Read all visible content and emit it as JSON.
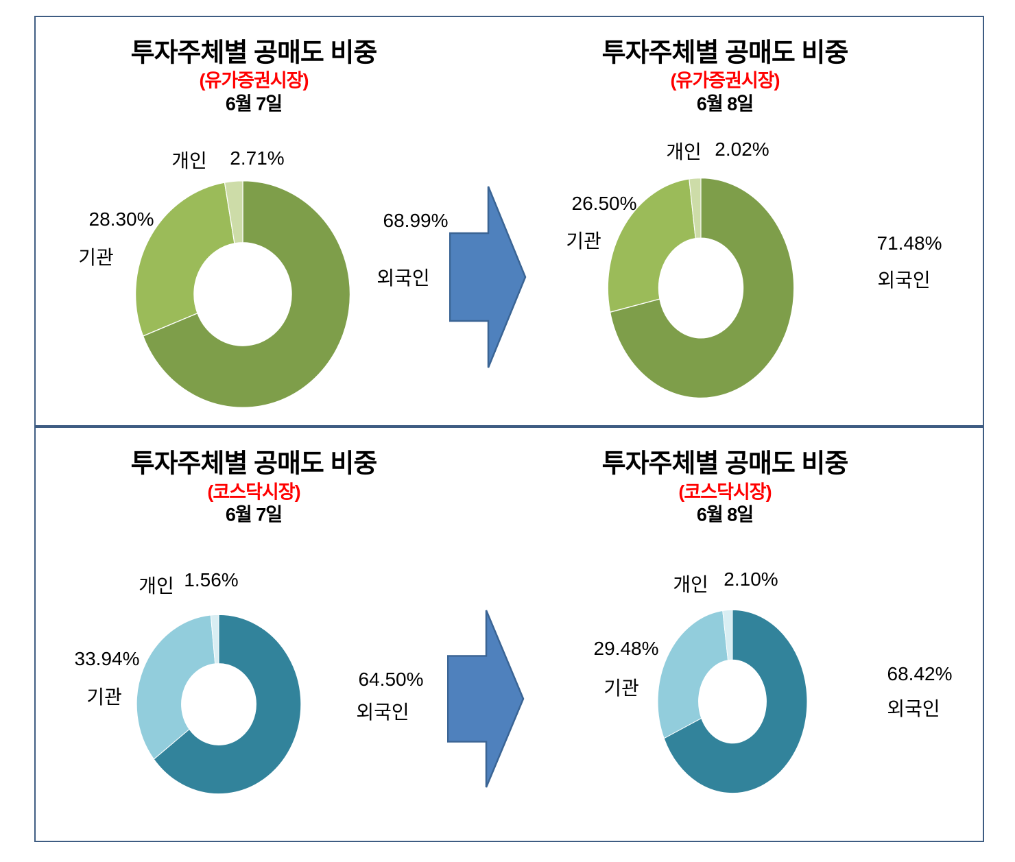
{
  "chart_data": [
    {
      "type": "donut",
      "title": "투자주체별 공매도 비중",
      "market": "(유가증권시장)",
      "date": "6월 7일",
      "legend_position": "around",
      "series": [
        {
          "name": "외국인",
          "value": 68.99,
          "display": "68.99%",
          "color": "#7E9E4A"
        },
        {
          "name": "기관",
          "value": 28.3,
          "display": "28.30%",
          "color": "#9BBB59"
        },
        {
          "name": "개인",
          "value": 2.71,
          "display": "2.71%",
          "color": "#CDDCA8"
        }
      ]
    },
    {
      "type": "donut",
      "title": "투자주체별 공매도 비중",
      "market": "(유가증권시장)",
      "date": "6월 8일",
      "legend_position": "around",
      "series": [
        {
          "name": "외국인",
          "value": 71.48,
          "display": "71.48%",
          "color": "#7E9E4A"
        },
        {
          "name": "기관",
          "value": 26.5,
          "display": "26.50%",
          "color": "#9BBB59"
        },
        {
          "name": "개인",
          "value": 2.02,
          "display": "2.02%",
          "color": "#CDDCA8"
        }
      ]
    },
    {
      "type": "donut",
      "title": "투자주체별 공매도 비중",
      "market": "(코스닥시장)",
      "date": "6월 7일",
      "legend_position": "around",
      "series": [
        {
          "name": "외국인",
          "value": 64.5,
          "display": "64.50%",
          "color": "#32839B"
        },
        {
          "name": "기관",
          "value": 33.94,
          "display": "33.94%",
          "color": "#92CDDC"
        },
        {
          "name": "개인",
          "value": 1.56,
          "display": "1.56%",
          "color": "#D9EEF3"
        }
      ]
    },
    {
      "type": "donut",
      "title": "투자주체별 공매도 비중",
      "market": "(코스닥시장)",
      "date": "6월 8일",
      "legend_position": "around",
      "series": [
        {
          "name": "외국인",
          "value": 68.42,
          "display": "68.42%",
          "color": "#32839B"
        },
        {
          "name": "기관",
          "value": 29.48,
          "display": "29.48%",
          "color": "#92CDDC"
        },
        {
          "name": "개인",
          "value": 2.1,
          "display": "2.10%",
          "color": "#D9EEF3"
        }
      ]
    }
  ],
  "arrow": {
    "direction": "right",
    "fill": "#4F81BD",
    "stroke": "#3A6494"
  },
  "panel_border_color": "#3E5C82"
}
